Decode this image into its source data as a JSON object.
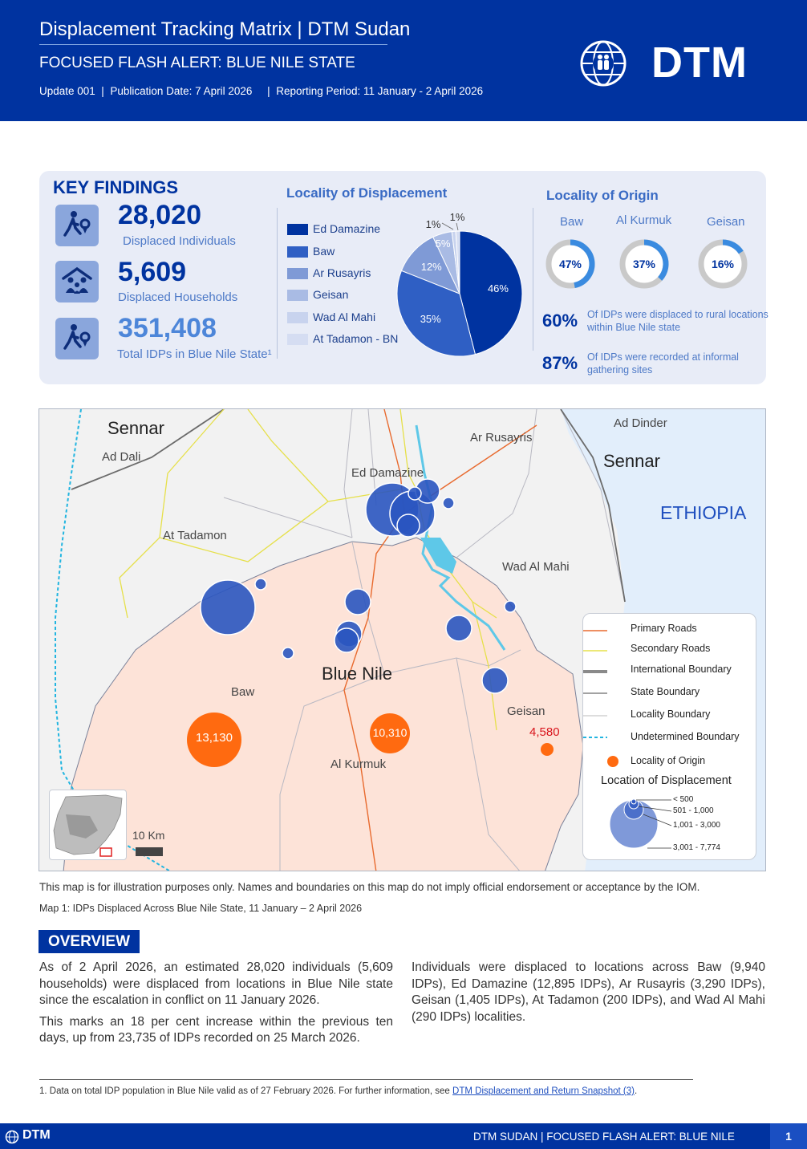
{
  "header": {
    "title": "Displacement Tracking Matrix | DTM Sudan",
    "subtitle": "FOCUSED FLASH ALERT: BLUE NILE STATE",
    "meta": "Update 001  |  Publication Date: 7 April 2026     |  Reporting Period: 11 January - 2 April 2026",
    "brand": "DTM",
    "logo_icon": "iom-globe-icon"
  },
  "key_findings": {
    "title": "KEY FINDINGS",
    "items": [
      {
        "value": "28,020",
        "label": "Displaced Individuals",
        "icon": "person-moving-icon"
      },
      {
        "value": "5,609",
        "label": "Displaced Households",
        "icon": "household-icon"
      },
      {
        "value": "351,408",
        "label": "Total IDPs in Blue Nile State¹",
        "icon": "person-moving-icon"
      }
    ]
  },
  "displacement": {
    "title": "Locality of Displacement",
    "colors": [
      "#0033a0",
      "#2f5fc4",
      "#7f9ad6",
      "#a9bbe4",
      "#c8d3ee",
      "#d5ddf2"
    ],
    "chart_data": {
      "type": "pie",
      "categories": [
        "Ed Damazine",
        "Baw",
        "Ar Rusayris",
        "Geisan",
        "Wad Al Mahi",
        "At Tadamon - BN"
      ],
      "values": [
        46,
        35,
        12,
        5,
        1,
        1
      ],
      "labels": [
        "46%",
        "35%",
        "12%",
        "5%",
        "1%",
        "1%"
      ]
    }
  },
  "origin": {
    "title": "Locality of Origin",
    "items": [
      {
        "name": "Baw",
        "value": 47,
        "label": "47%"
      },
      {
        "name": "Al Kurmuk",
        "value": 37,
        "label": "37%"
      },
      {
        "name": "Geisan",
        "value": 16,
        "label": "16%"
      }
    ],
    "stats": [
      {
        "value": "60%",
        "line1": "Of IDPs were displaced to rural locations",
        "line2": "within Blue Nile state"
      },
      {
        "value": "87%",
        "line1": "Of IDPs were recorded at informal",
        "line2": "gathering sites"
      }
    ]
  },
  "map": {
    "labels": {
      "sennar_w": "Sennar",
      "ad_dali": "Ad Dali",
      "ar_rusayris": "Ar Rusayris",
      "ad_dinder": "Ad Dinder",
      "sennar_e": "Sennar",
      "ethiopia": "ETHIOPIA",
      "ed_damazine": "Ed Damazine",
      "at_tadamon": "At Tadamon",
      "wad_al_mahi": "Wad Al Mahi",
      "blue_nile": "Blue Nile",
      "baw": "Baw",
      "geisan": "Geisan",
      "al_kurmuk": "Al Kurmuk",
      "scale": "10 Km"
    },
    "origin_values": {
      "baw": "13,130",
      "al_kurmuk": "10,310",
      "geisan": "4,580"
    },
    "legend": {
      "primary_roads": "Primary Roads",
      "secondary_roads": "Secondary Roads",
      "international_boundary": "International Boundary",
      "state_boundary": "State Boundary",
      "locality_boundary": "Locality Boundary",
      "undetermined_boundary": "Undetermined Boundary",
      "locality_of_origin": "Locality of Origin",
      "location_of_displacement": "Location of Displacement",
      "bins": [
        "< 500",
        "501 - 1,000",
        "1,001 - 3,000",
        "3,001 - 7,774"
      ]
    },
    "colors": {
      "idp": "#2a55c0",
      "origin": "#ff6a10",
      "state": "#fde3d8",
      "water": "#e2eefb",
      "river": "#5ec8e8"
    }
  },
  "notes": {
    "disclaimer": "This map is for illustration purposes only. Names and boundaries on this map do not imply official endorsement or acceptance by the IOM.",
    "caption": "Map 1: IDPs Displaced Across Blue Nile State, 11 January – 2 April 2026"
  },
  "overview": {
    "title": "OVERVIEW",
    "p1": "As of 2 April 2026, an estimated 28,020 individuals (5,609 households) were displaced from locations in Blue Nile state since the escalation in conflict on 11 January 2026.",
    "p2": "This marks an 18 per cent increase within the previous ten days, up from 23,735 of IDPs recorded on 25 March 2026.",
    "p3": "Individuals were displaced to locations across Baw (9,940 IDPs), Ed Damazine (12,895 IDPs), Ar Rusayris (3,290 IDPs), Geisan (1,405 IDPs), At Tadamon (200 IDPs), and Wad Al Mahi (290 IDPs) localities."
  },
  "footnote": {
    "text": "1. Data on total IDP population in Blue Nile valid as of 27 February 2026. For further information, see ",
    "link": "DTM Displacement and Return Snapshot (3)",
    "end": "."
  },
  "footer": {
    "brand": "DTM",
    "title": "DTM SUDAN | FOCUSED FLASH ALERT: BLUE NILE",
    "page": "1"
  }
}
